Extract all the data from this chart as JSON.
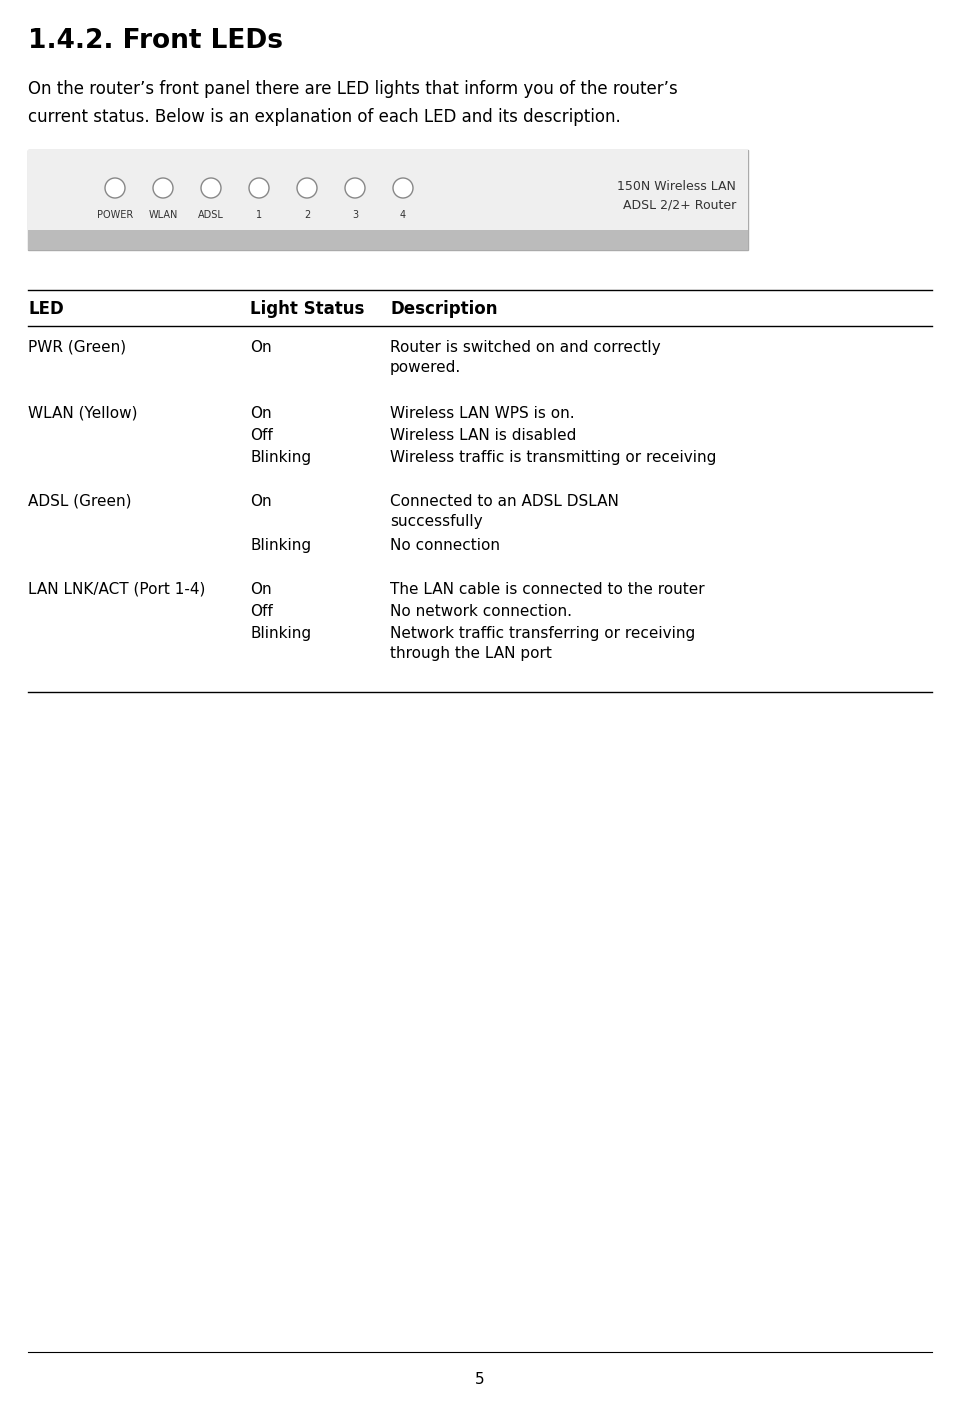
{
  "title": "1.4.2. Front LEDs",
  "intro_text_line1": "On the router’s front panel there are LED lights that inform you of the router’s",
  "intro_text_line2": "current status. Below is an explanation of each LED and its description.",
  "router_image_text1": "150N Wireless LAN",
  "router_image_text2": "ADSL 2/2+ Router",
  "led_labels": [
    "POWER",
    "WLAN",
    "ADSL",
    "1",
    "2",
    "3",
    "4"
  ],
  "table_headers": [
    "LED",
    "Light Status",
    "Description"
  ],
  "table_rows": [
    {
      "led": "PWR (Green)",
      "entries": [
        {
          "status": "On",
          "desc": "Router is switched on and correctly\npowered."
        }
      ]
    },
    {
      "led": "WLAN (Yellow)",
      "entries": [
        {
          "status": "On",
          "desc": "Wireless LAN WPS is on."
        },
        {
          "status": "Off",
          "desc": "Wireless LAN is disabled"
        },
        {
          "status": "Blinking",
          "desc": "Wireless traffic is transmitting or receiving"
        }
      ]
    },
    {
      "led": "ADSL (Green)",
      "entries": [
        {
          "status": "On",
          "desc": "Connected to an ADSL DSLAN\nsuccessfully"
        },
        {
          "status": "Blinking",
          "desc": "No connection"
        }
      ]
    },
    {
      "led": "LAN LNK/ACT (Port 1-4)",
      "entries": [
        {
          "status": "On",
          "desc": "The LAN cable is connected to the router"
        },
        {
          "status": "Off",
          "desc": "No network connection."
        },
        {
          "status": "Blinking",
          "desc": "Network traffic transferring or receiving\nthrough the LAN port"
        }
      ]
    }
  ],
  "page_number": "5",
  "bg_color": "#ffffff",
  "text_color": "#000000",
  "router_bg": "#efefef",
  "router_border": "#aaaaaa",
  "router_bottom_bar": "#bbbbbb",
  "title_fontsize": 19,
  "intro_fontsize": 12,
  "table_header_fontsize": 12,
  "table_body_fontsize": 11,
  "router_label_fontsize": 7,
  "router_side_fontsize": 9
}
